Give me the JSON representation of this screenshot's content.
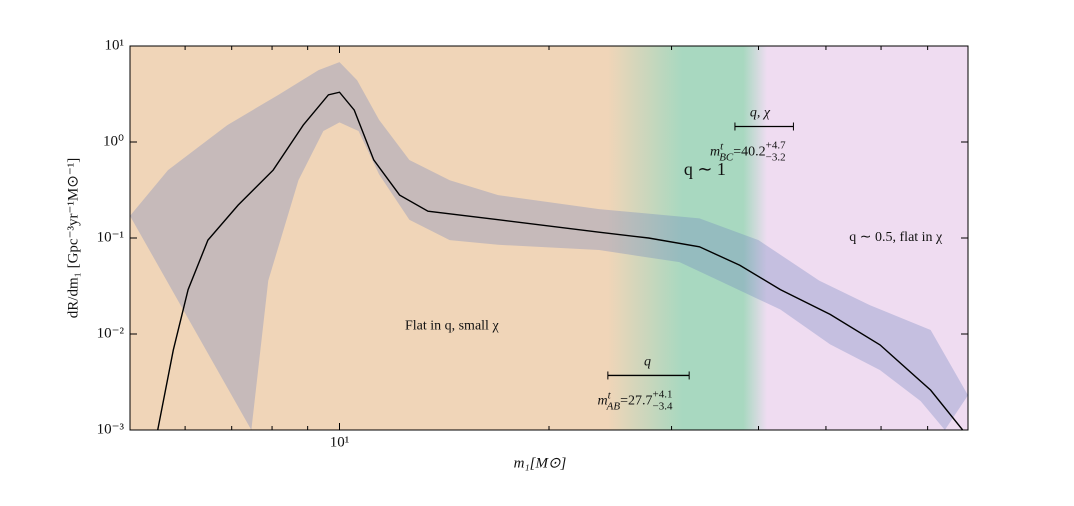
{
  "chart_data": {
    "type": "line",
    "ylabel": "dR/dm₁ [Gpc⁻³yr⁻¹M⊙⁻¹]",
    "xlabel": "m₁[M⊙]",
    "xlog": true,
    "ylog": true,
    "xlim": [
      5,
      80
    ],
    "ylim": [
      0.001,
      10
    ],
    "xticks": [
      {
        "value": 10,
        "label": "10¹"
      }
    ],
    "xminorticks": [
      6,
      7,
      8,
      9,
      20,
      30,
      40,
      50,
      60,
      70
    ],
    "yticks": [
      {
        "value": 10,
        "label": "10¹"
      },
      {
        "value": 1,
        "label": "10⁰"
      },
      {
        "value": 0.1,
        "label": "10⁻¹"
      },
      {
        "value": 0.01,
        "label": "10⁻²"
      },
      {
        "value": 0.001,
        "label": "10⁻³"
      }
    ],
    "region_colors": [
      "#f0d5b8",
      "#a8d8c0",
      "#efdcf1"
    ],
    "median": {
      "color": "#000000",
      "x": [
        5.48,
        5.77,
        6.06,
        6.47,
        7.15,
        8.03,
        8.87,
        9.64,
        10,
        10.5,
        11.2,
        12.2,
        13.4,
        16.9,
        23.6,
        27.8,
        32.9,
        37.6,
        43,
        50.7,
        59.8,
        70.7,
        78.6
      ],
      "values": [
        0.001,
        0.0068,
        0.029,
        0.095,
        0.22,
        0.51,
        1.5,
        3.1,
        3.3,
        2.15,
        0.65,
        0.28,
        0.19,
        0.155,
        0.115,
        0.1,
        0.081,
        0.052,
        0.029,
        0.016,
        0.0077,
        0.0026,
        0.001
      ]
    },
    "band": {
      "color": "rgba(110,130,190,0.32)",
      "upper": {
        "x": [
          5,
          5.67,
          6.9,
          8.17,
          9.33,
          10,
          10.6,
          11.4,
          12.6,
          14.4,
          16.9,
          23.6,
          32.9,
          40,
          48.9,
          57.8,
          70.7,
          80
        ],
        "values": [
          0.17,
          0.51,
          1.5,
          3.1,
          5.6,
          6.8,
          4.4,
          1.7,
          0.65,
          0.4,
          0.28,
          0.2,
          0.16,
          0.095,
          0.036,
          0.02,
          0.011,
          0.0023
        ]
      },
      "lower": {
        "x": [
          7.47,
          7.9,
          8.73,
          9.48,
          10,
          10.65,
          11.4,
          12.6,
          14.4,
          16.9,
          23.6,
          30.8,
          35.1,
          43,
          50.7,
          59.8,
          68.4,
          74.1
        ],
        "values": [
          0.001,
          0.036,
          0.4,
          1.3,
          1.6,
          1.3,
          0.46,
          0.155,
          0.095,
          0.085,
          0.075,
          0.056,
          0.036,
          0.018,
          0.0078,
          0.0042,
          0.002,
          0.001
        ]
      }
    },
    "annotations": [
      {
        "text": "Flat in q, small χ",
        "x": 14.5,
        "y": 0.012
      },
      {
        "text": "q ∼ 1",
        "x": 33.5,
        "y": 0.5
      },
      {
        "text": "q ∼ 0.5, flat in χ",
        "x": 63,
        "y": 0.1
      }
    ],
    "transitions": [
      {
        "label": "q",
        "symbol": "m",
        "sup": "t",
        "sub": "AB",
        "value": 27.7,
        "plus": 4.1,
        "minus": 3.4,
        "value_label": "=27.7",
        "plus_label": "+4.1",
        "minus_label": "−3.4",
        "y": 0.0037
      },
      {
        "label": "q, χ",
        "symbol": "m",
        "sup": "t",
        "sub": "BC",
        "value": 40.2,
        "plus": 4.7,
        "minus": 3.2,
        "value_label": "=40.2",
        "plus_label": "+4.7",
        "minus_label": "−3.2",
        "y": 1.45
      }
    ]
  }
}
